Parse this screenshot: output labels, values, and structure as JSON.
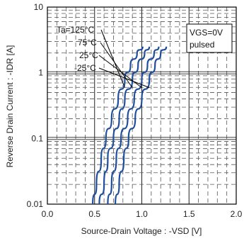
{
  "chart_data": {
    "type": "line",
    "title": "",
    "xlabel": "Source-Drain Voltage : -VSD [V]",
    "ylabel": "Reverse Drain Current : -IDR [A]",
    "xlim": [
      0.0,
      2.0
    ],
    "ylim": [
      0.01,
      10
    ],
    "yscale": "log",
    "grid": true,
    "x_ticks": [
      0.0,
      0.5,
      1.0,
      1.5,
      2.0
    ],
    "x_tick_labels": [
      "0.0",
      "0.5",
      "1.0",
      "1.5",
      "2.0"
    ],
    "y_ticks": [
      0.01,
      0.1,
      1,
      10
    ],
    "y_tick_labels": [
      "0.01",
      "0.1",
      "1",
      "10"
    ],
    "line_color": "#1f4e9c",
    "series": [
      {
        "name": "Ta=125°C",
        "x": [
          0.48,
          0.52,
          0.57,
          0.62,
          0.68,
          0.75,
          0.82,
          0.88,
          0.95,
          1.01
        ],
        "y": [
          0.01,
          0.02,
          0.05,
          0.1,
          0.2,
          0.4,
          0.8,
          1.3,
          2.0,
          2.5
        ]
      },
      {
        "name": "75°C",
        "x": [
          0.55,
          0.6,
          0.64,
          0.7,
          0.76,
          0.82,
          0.9,
          0.96,
          1.03,
          1.08
        ],
        "y": [
          0.01,
          0.02,
          0.05,
          0.1,
          0.2,
          0.4,
          0.8,
          1.3,
          2.0,
          2.5
        ]
      },
      {
        "name": "25°C",
        "x": [
          0.64,
          0.68,
          0.73,
          0.78,
          0.85,
          0.92,
          1.0,
          1.06,
          1.13,
          1.18
        ],
        "y": [
          0.01,
          0.02,
          0.05,
          0.1,
          0.2,
          0.4,
          0.8,
          1.3,
          2.0,
          2.5
        ]
      },
      {
        "name": "-25°C",
        "x": [
          0.72,
          0.76,
          0.81,
          0.86,
          0.93,
          1.0,
          1.08,
          1.14,
          1.2,
          1.26
        ],
        "y": [
          0.01,
          0.02,
          0.05,
          0.1,
          0.2,
          0.4,
          0.8,
          1.3,
          2.0,
          2.5
        ]
      }
    ],
    "annotations": {
      "series_labels": [
        "Ta=125°C",
        "75°C",
        "25°C",
        "-25°C"
      ],
      "box_lines": [
        "VGS=0V",
        "pulsed"
      ]
    }
  }
}
